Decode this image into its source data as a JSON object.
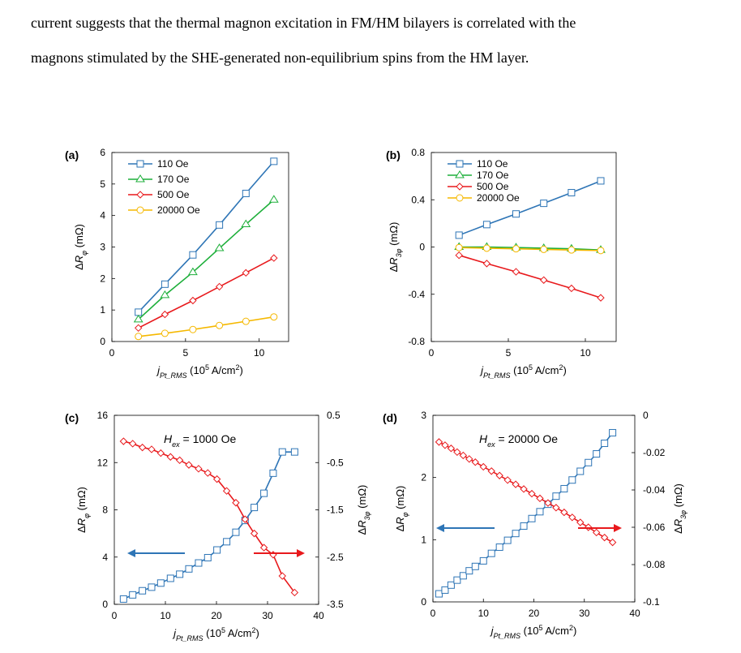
{
  "text": {
    "line1": "current suggests that the thermal magnon excitation in FM/HM bilayers is correlated with the",
    "line2": "magnons stimulated by the SHE-generated non-equilibrium spins from the HM layer."
  },
  "colors": {
    "blue": "#2E75B6",
    "green": "#1DAF3A",
    "red": "#E8191C",
    "yellow": "#F5B800"
  },
  "chart_data": [
    {
      "panel": "(a)",
      "type": "line",
      "xlabel": "j_Pt_RMS (10^5 A/cm^2)",
      "ylabel": "ΔR_φ (mΩ)",
      "xlim": [
        0,
        12
      ],
      "ylim": [
        0,
        6
      ],
      "xticks": [
        "0",
        "5",
        "10"
      ],
      "yticks": [
        "0",
        "1",
        "2",
        "3",
        "4",
        "5",
        "6"
      ],
      "legend": "top-left",
      "x": [
        1.8,
        3.6,
        5.5,
        7.3,
        9.1,
        11.0
      ],
      "series": [
        {
          "name": "110 Oe",
          "color": "#2E75B6",
          "marker": "square",
          "values": [
            0.93,
            1.82,
            2.75,
            3.7,
            4.7,
            5.72
          ]
        },
        {
          "name": "170 Oe",
          "color": "#1DAF3A",
          "marker": "triangle",
          "values": [
            0.7,
            1.47,
            2.2,
            2.96,
            3.72,
            4.5
          ]
        },
        {
          "name": "500 Oe",
          "color": "#E8191C",
          "marker": "diamond",
          "values": [
            0.43,
            0.86,
            1.3,
            1.74,
            2.18,
            2.65
          ]
        },
        {
          "name": "20000 Oe",
          "color": "#F5B800",
          "marker": "circle",
          "values": [
            0.16,
            0.26,
            0.38,
            0.51,
            0.64,
            0.78
          ]
        }
      ]
    },
    {
      "panel": "(b)",
      "type": "line",
      "xlabel": "j_Pt_RMS (10^5 A/cm^2)",
      "ylabel": "ΔR_3φ (mΩ)",
      "xlim": [
        0,
        12
      ],
      "ylim": [
        -0.8,
        0.8
      ],
      "xticks": [
        "0",
        "5",
        "10"
      ],
      "yticks": [
        "-0.8",
        "-0.4",
        "0",
        "0.4",
        "0.8"
      ],
      "legend": "top-left",
      "x": [
        1.8,
        3.6,
        5.5,
        7.3,
        9.1,
        11.0
      ],
      "series": [
        {
          "name": "110 Oe",
          "color": "#2E75B6",
          "marker": "square",
          "values": [
            0.1,
            0.19,
            0.28,
            0.37,
            0.46,
            0.56
          ]
        },
        {
          "name": "170 Oe",
          "color": "#1DAF3A",
          "marker": "triangle",
          "values": [
            0.0,
            0.0,
            -0.005,
            -0.01,
            -0.015,
            -0.025
          ]
        },
        {
          "name": "500 Oe",
          "color": "#E8191C",
          "marker": "diamond",
          "values": [
            -0.07,
            -0.14,
            -0.21,
            -0.28,
            -0.35,
            -0.43
          ]
        },
        {
          "name": "20000 Oe",
          "color": "#F5B800",
          "marker": "circle",
          "values": [
            -0.005,
            -0.01,
            -0.015,
            -0.02,
            -0.025,
            -0.03
          ]
        }
      ]
    },
    {
      "panel": "(c)",
      "type": "line",
      "annotation": "H_ex = 1000 Oe",
      "xlabel": "j_Pt_RMS (10^5 A/cm^2)",
      "ylabel": "ΔR_φ (mΩ)",
      "ylabel_right": "ΔR_3φ (mΩ)",
      "xlim": [
        0,
        40
      ],
      "ylim": [
        0,
        16
      ],
      "ylim_right": [
        -3.5,
        0.5
      ],
      "xticks": [
        "0",
        "10",
        "20",
        "30",
        "40"
      ],
      "yticks": [
        "0",
        "4",
        "8",
        "12",
        "16"
      ],
      "yticks_right": [
        "-3.5",
        "-2.5",
        "-1.5",
        "-0.5",
        "0.5"
      ],
      "series": [
        {
          "axis": "left",
          "color": "#2E75B6",
          "marker": "square",
          "x": [
            1.8,
            3.6,
            5.5,
            7.3,
            9.1,
            11.0,
            12.8,
            14.6,
            16.5,
            18.3,
            20.1,
            22.0,
            23.8,
            25.6,
            27.4,
            29.3,
            31.1,
            32.9,
            35.3
          ],
          "values": [
            0.45,
            0.8,
            1.15,
            1.45,
            1.8,
            2.2,
            2.55,
            3.0,
            3.5,
            3.95,
            4.6,
            5.3,
            6.1,
            7.1,
            8.2,
            9.4,
            11.1,
            12.9,
            12.9
          ]
        },
        {
          "axis": "right",
          "color": "#E8191C",
          "marker": "diamond",
          "x": [
            1.8,
            3.6,
            5.5,
            7.3,
            9.1,
            11.0,
            12.8,
            14.6,
            16.5,
            18.3,
            20.1,
            22.0,
            23.8,
            25.6,
            27.4,
            29.3,
            31.1,
            32.9,
            35.3
          ],
          "values": [
            -0.05,
            -0.1,
            -0.18,
            -0.22,
            -0.3,
            -0.38,
            -0.45,
            -0.55,
            -0.63,
            -0.72,
            -0.85,
            -1.1,
            -1.35,
            -1.7,
            -2.0,
            -2.3,
            -2.45,
            -2.9,
            -3.25
          ]
        }
      ],
      "arrows": [
        "left-blue",
        "right-red"
      ]
    },
    {
      "panel": "(d)",
      "type": "line",
      "annotation": "H_ex = 20000 Oe",
      "xlabel": "j_Pt_RMS (10^5 A/cm^2)",
      "ylabel": "ΔR_φ (mΩ)",
      "ylabel_right": "ΔR_3φ (mΩ)",
      "xlim": [
        0,
        40
      ],
      "ylim": [
        0,
        3
      ],
      "ylim_right": [
        -0.1,
        0
      ],
      "xticks": [
        "0",
        "10",
        "20",
        "30",
        "40"
      ],
      "yticks": [
        "0",
        "1",
        "2",
        "3"
      ],
      "yticks_right": [
        "-0.1",
        "-0.08",
        "-0.06",
        "-0.04",
        "-0.02",
        "0"
      ],
      "series": [
        {
          "axis": "left",
          "color": "#2E75B6",
          "marker": "square",
          "x": [
            1.2,
            2.4,
            3.6,
            4.8,
            6.0,
            7.2,
            8.4,
            10.0,
            11.6,
            13.2,
            14.8,
            16.4,
            18.0,
            19.6,
            21.2,
            22.8,
            24.4,
            26.0,
            27.6,
            29.2,
            30.8,
            32.4,
            34.0,
            35.6
          ],
          "values": [
            0.13,
            0.19,
            0.27,
            0.35,
            0.42,
            0.5,
            0.57,
            0.66,
            0.78,
            0.88,
            0.99,
            1.1,
            1.22,
            1.34,
            1.45,
            1.57,
            1.7,
            1.82,
            1.96,
            2.1,
            2.24,
            2.38,
            2.55,
            2.72
          ]
        },
        {
          "axis": "right",
          "color": "#E8191C",
          "marker": "diamond",
          "x": [
            1.2,
            2.4,
            3.6,
            4.8,
            6.0,
            7.2,
            8.4,
            10.0,
            11.6,
            13.2,
            14.8,
            16.4,
            18.0,
            19.6,
            21.2,
            22.8,
            24.4,
            26.0,
            27.6,
            29.2,
            30.8,
            32.4,
            34.0,
            35.6
          ],
          "values": [
            -0.0143,
            -0.016,
            -0.0177,
            -0.0197,
            -0.0215,
            -0.0234,
            -0.0251,
            -0.0276,
            -0.0299,
            -0.0323,
            -0.0347,
            -0.037,
            -0.0395,
            -0.042,
            -0.0445,
            -0.047,
            -0.0495,
            -0.052,
            -0.0547,
            -0.0574,
            -0.06,
            -0.0628,
            -0.0655,
            -0.0681
          ]
        }
      ],
      "arrows": [
        "left-blue",
        "right-red"
      ]
    }
  ]
}
